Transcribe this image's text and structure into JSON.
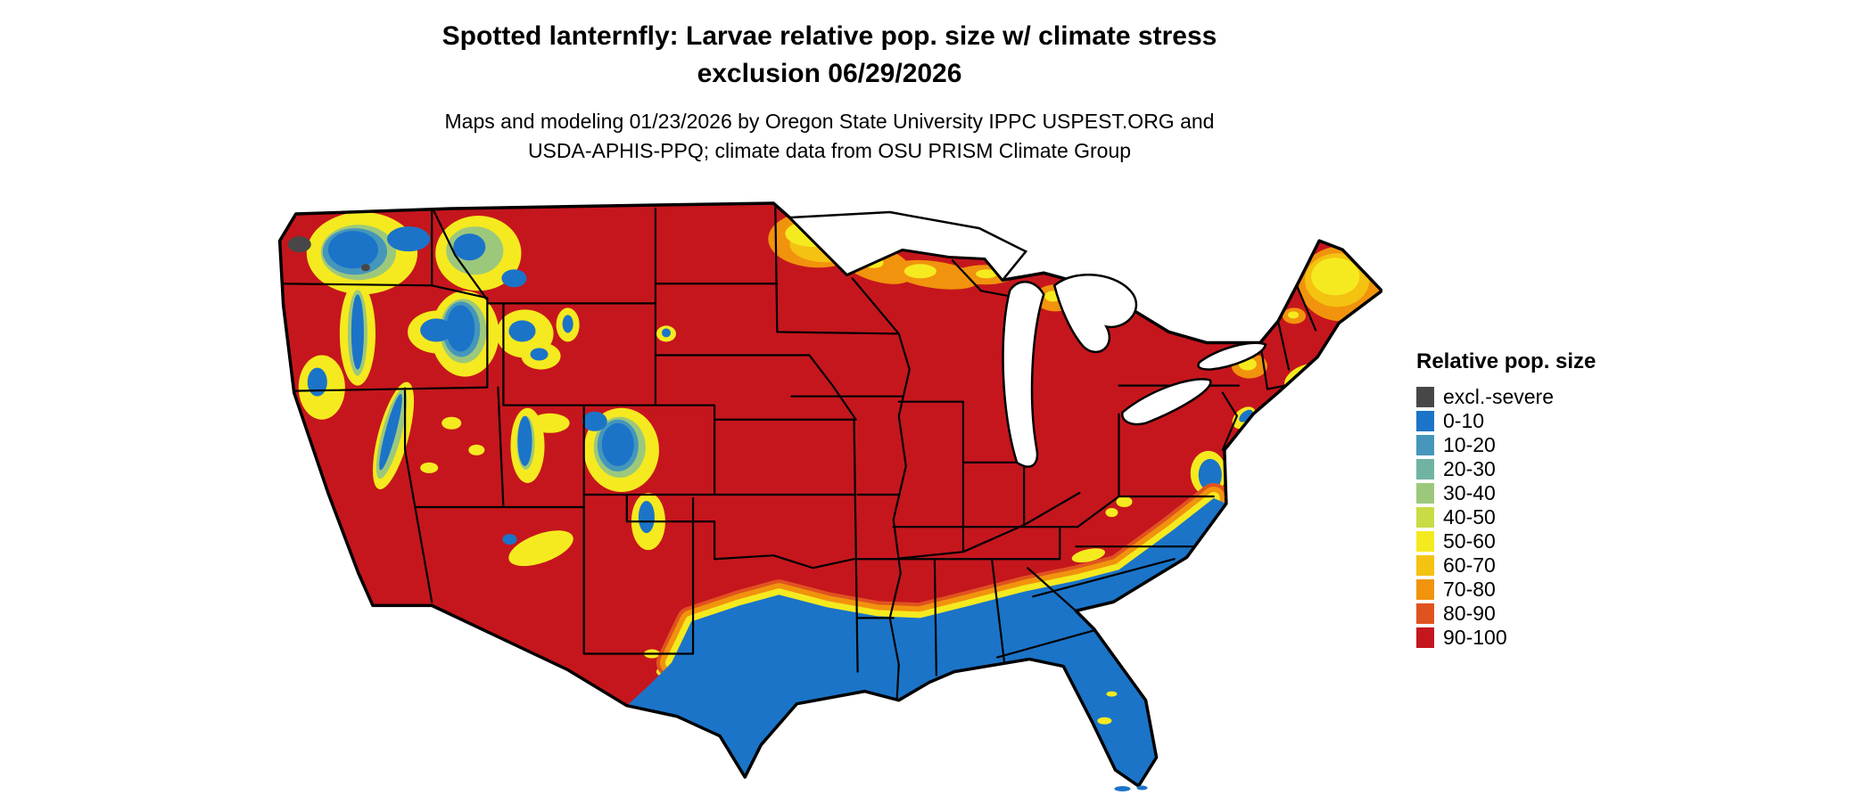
{
  "title": {
    "line1": "Spotted lanternfly: Larvae relative pop. size w/ climate stress",
    "line2": "exclusion 06/29/2026"
  },
  "subtitle": {
    "line1": "Maps and modeling 01/23/2026 by Oregon State University IPPC USPEST.ORG and",
    "line2": "USDA-APHIS-PPQ; climate data from OSU PRISM Climate Group"
  },
  "legend": {
    "title": "Relative pop. size",
    "items": [
      {
        "label": "excl.-severe",
        "palette": "excl_severe"
      },
      {
        "label": "0-10",
        "palette": "p0_10"
      },
      {
        "label": "10-20",
        "palette": "p10_20"
      },
      {
        "label": "20-30",
        "palette": "p20_30"
      },
      {
        "label": "30-40",
        "palette": "p30_40"
      },
      {
        "label": "40-50",
        "palette": "p40_50"
      },
      {
        "label": "50-60",
        "palette": "p50_60"
      },
      {
        "label": "60-70",
        "palette": "p60_70"
      },
      {
        "label": "70-80",
        "palette": "p70_80"
      },
      {
        "label": "80-90",
        "palette": "p80_90"
      },
      {
        "label": "90-100",
        "palette": "p90_100"
      }
    ]
  },
  "palette": {
    "excl_severe": "#474747",
    "p0_10": "#1b74c8",
    "p10_20": "#4596bb",
    "p20_30": "#71b3a2",
    "p30_40": "#9cc87c",
    "p40_50": "#c9dc45",
    "p50_60": "#f5ea1f",
    "p60_70": "#f4c211",
    "p70_80": "#f1930d",
    "p80_90": "#e0531f",
    "p90_100": "#c5161d"
  },
  "map": {
    "region": "Contiguous United States"
  }
}
